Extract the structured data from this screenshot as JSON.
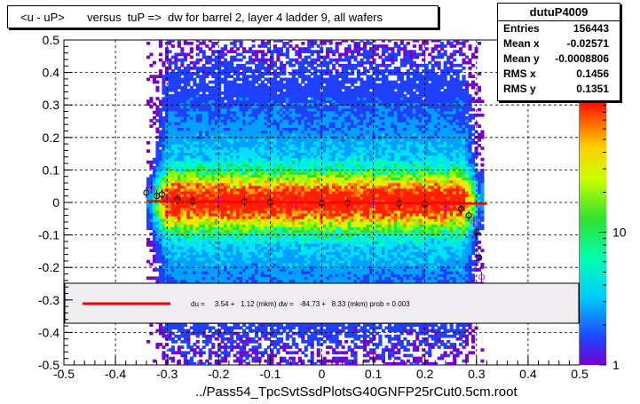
{
  "title": "<u - uP>       versus  tuP =>  dw for barrel 2, layer 4 ladder 9, all wafers",
  "stats": {
    "name": "dutuP4009",
    "rows": [
      {
        "label": "Entries",
        "value": "156443"
      },
      {
        "label": "Mean x",
        "value": "-0.02571"
      },
      {
        "label": "Mean y",
        "value": "-0.0008806"
      },
      {
        "label": "RMS x",
        "value": "0.1456"
      },
      {
        "label": "RMS y",
        "value": "0.1351"
      }
    ]
  },
  "fit_text": "du =     3.54 +   1.12 (mkm) dw =   -84.73 +   8.33 (mkm) prob = 0.003",
  "xlabel": "../Pass54_TpcSvtSsdPlotsG40GNFP25rCut0.5cm.root",
  "chart_data": {
    "type": "heatmap",
    "xlim": [
      -0.5,
      0.5
    ],
    "ylim": [
      -0.5,
      0.5
    ],
    "x_ticks": [
      "-0.5",
      "-0.4",
      "-0.3",
      "-0.2",
      "-0.1",
      "0",
      "0.1",
      "0.2",
      "0.3",
      "0.4",
      "0.5"
    ],
    "y_ticks": [
      "-0.5",
      "-0.4",
      "-0.3",
      "-0.2",
      "-0.1",
      "0",
      "0.1",
      "0.2",
      "0.3",
      "0.4",
      "0.5"
    ],
    "colorbar_ticks": [
      {
        "label": "1",
        "value": 1
      },
      {
        "label": "10",
        "value": 10
      }
    ],
    "colorbar_range": [
      1,
      100
    ],
    "grid": true,
    "data_x_range": [
      -0.34,
      0.31
    ],
    "profile_points": [
      {
        "x": -0.34,
        "y": 0.03
      },
      {
        "x": -0.33,
        "y": 0.045
      },
      {
        "x": -0.32,
        "y": 0.02
      },
      {
        "x": -0.31,
        "y": 0.025
      },
      {
        "x": -0.3,
        "y": 0.012
      },
      {
        "x": -0.28,
        "y": 0.008
      },
      {
        "x": -0.25,
        "y": 0.004
      },
      {
        "x": -0.2,
        "y": 0.003
      },
      {
        "x": -0.15,
        "y": 0.002
      },
      {
        "x": -0.1,
        "y": 0.001
      },
      {
        "x": -0.05,
        "y": 0.0
      },
      {
        "x": 0.0,
        "y": -0.002
      },
      {
        "x": 0.05,
        "y": -0.002
      },
      {
        "x": 0.1,
        "y": -0.001
      },
      {
        "x": 0.15,
        "y": -0.003
      },
      {
        "x": 0.2,
        "y": -0.005
      },
      {
        "x": 0.24,
        "y": -0.01
      },
      {
        "x": 0.27,
        "y": -0.02
      },
      {
        "x": 0.285,
        "y": -0.04
      },
      {
        "x": 0.295,
        "y": -0.06
      },
      {
        "x": 0.3,
        "y": -0.09
      },
      {
        "x": 0.305,
        "y": -0.17
      },
      {
        "x": 0.31,
        "y": -0.23
      }
    ],
    "fit_line": {
      "x": [
        -0.34,
        0.32
      ],
      "y": [
        0.004,
        -0.004
      ],
      "color": "#ff0000"
    },
    "colors": {
      "background": "#ffffff",
      "legend_bg": "#f0edf0",
      "fit": "#ff0000",
      "profile_marker": "#000000",
      "profile_marker_alt": "#ff00ff"
    }
  }
}
